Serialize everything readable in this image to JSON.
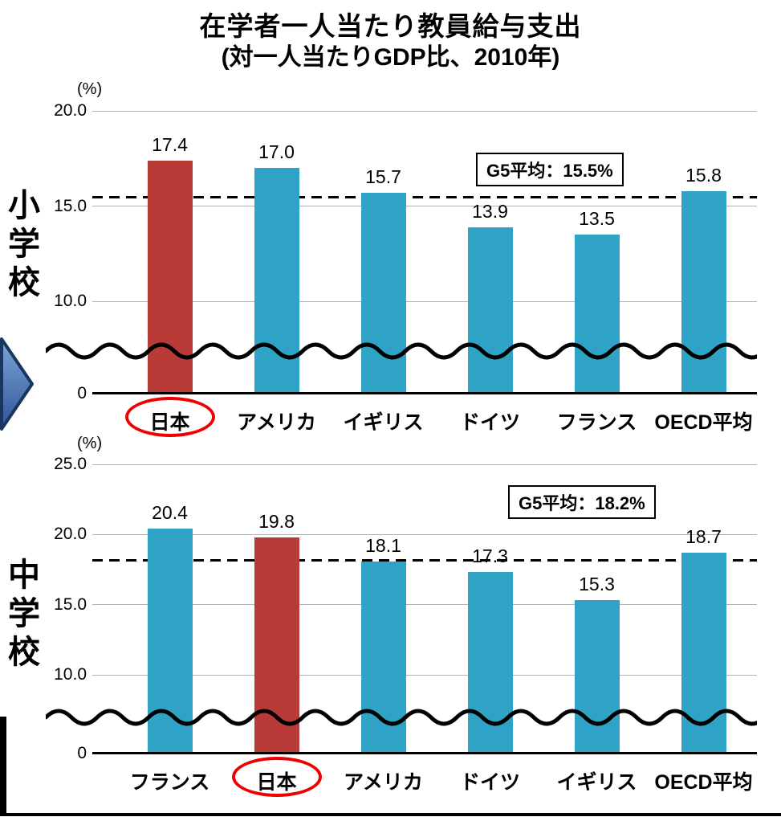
{
  "page_title": {
    "line1": "在学者一人当たり教員給与支出",
    "line2": "(対一人当たりGDP比、2010年)"
  },
  "colors": {
    "bar_default": "#2FA3C5",
    "bar_highlight": "#B93B38",
    "highlight_ellipse": "#EE0000",
    "reference_line": "#000000",
    "gridline": "#B3B3B3"
  },
  "chart_data": [
    {
      "type": "bar",
      "group_label": "小学校",
      "unit_label": "(%)",
      "categories": [
        "日本",
        "アメリカ",
        "イギリス",
        "ドイツ",
        "フランス",
        "OECD平均"
      ],
      "values": [
        17.4,
        17.0,
        15.7,
        13.9,
        13.5,
        15.8
      ],
      "highlight_index": 0,
      "highlight_category": "日本",
      "reference_line": {
        "label": "G5平均：15.5%",
        "value": 15.5
      },
      "yticks": [
        "20.0",
        "15.0",
        "10.0",
        "0"
      ],
      "ylim_visible": [
        10.0,
        20.0
      ],
      "axis_break": true,
      "grid": true,
      "legend": false
    },
    {
      "type": "bar",
      "group_label": "中学校",
      "unit_label": "(%)",
      "categories": [
        "フランス",
        "日本",
        "アメリカ",
        "ドイツ",
        "イギリス",
        "OECD平均"
      ],
      "values": [
        20.4,
        19.8,
        18.1,
        17.3,
        15.3,
        18.7
      ],
      "highlight_index": 1,
      "highlight_category": "日本",
      "reference_line": {
        "label": "G5平均：18.2%",
        "value": 18.2
      },
      "yticks": [
        "25.0",
        "20.0",
        "15.0",
        "10.0",
        "0"
      ],
      "ylim_visible": [
        10.0,
        25.0
      ],
      "axis_break": true,
      "grid": true,
      "legend": false
    }
  ]
}
